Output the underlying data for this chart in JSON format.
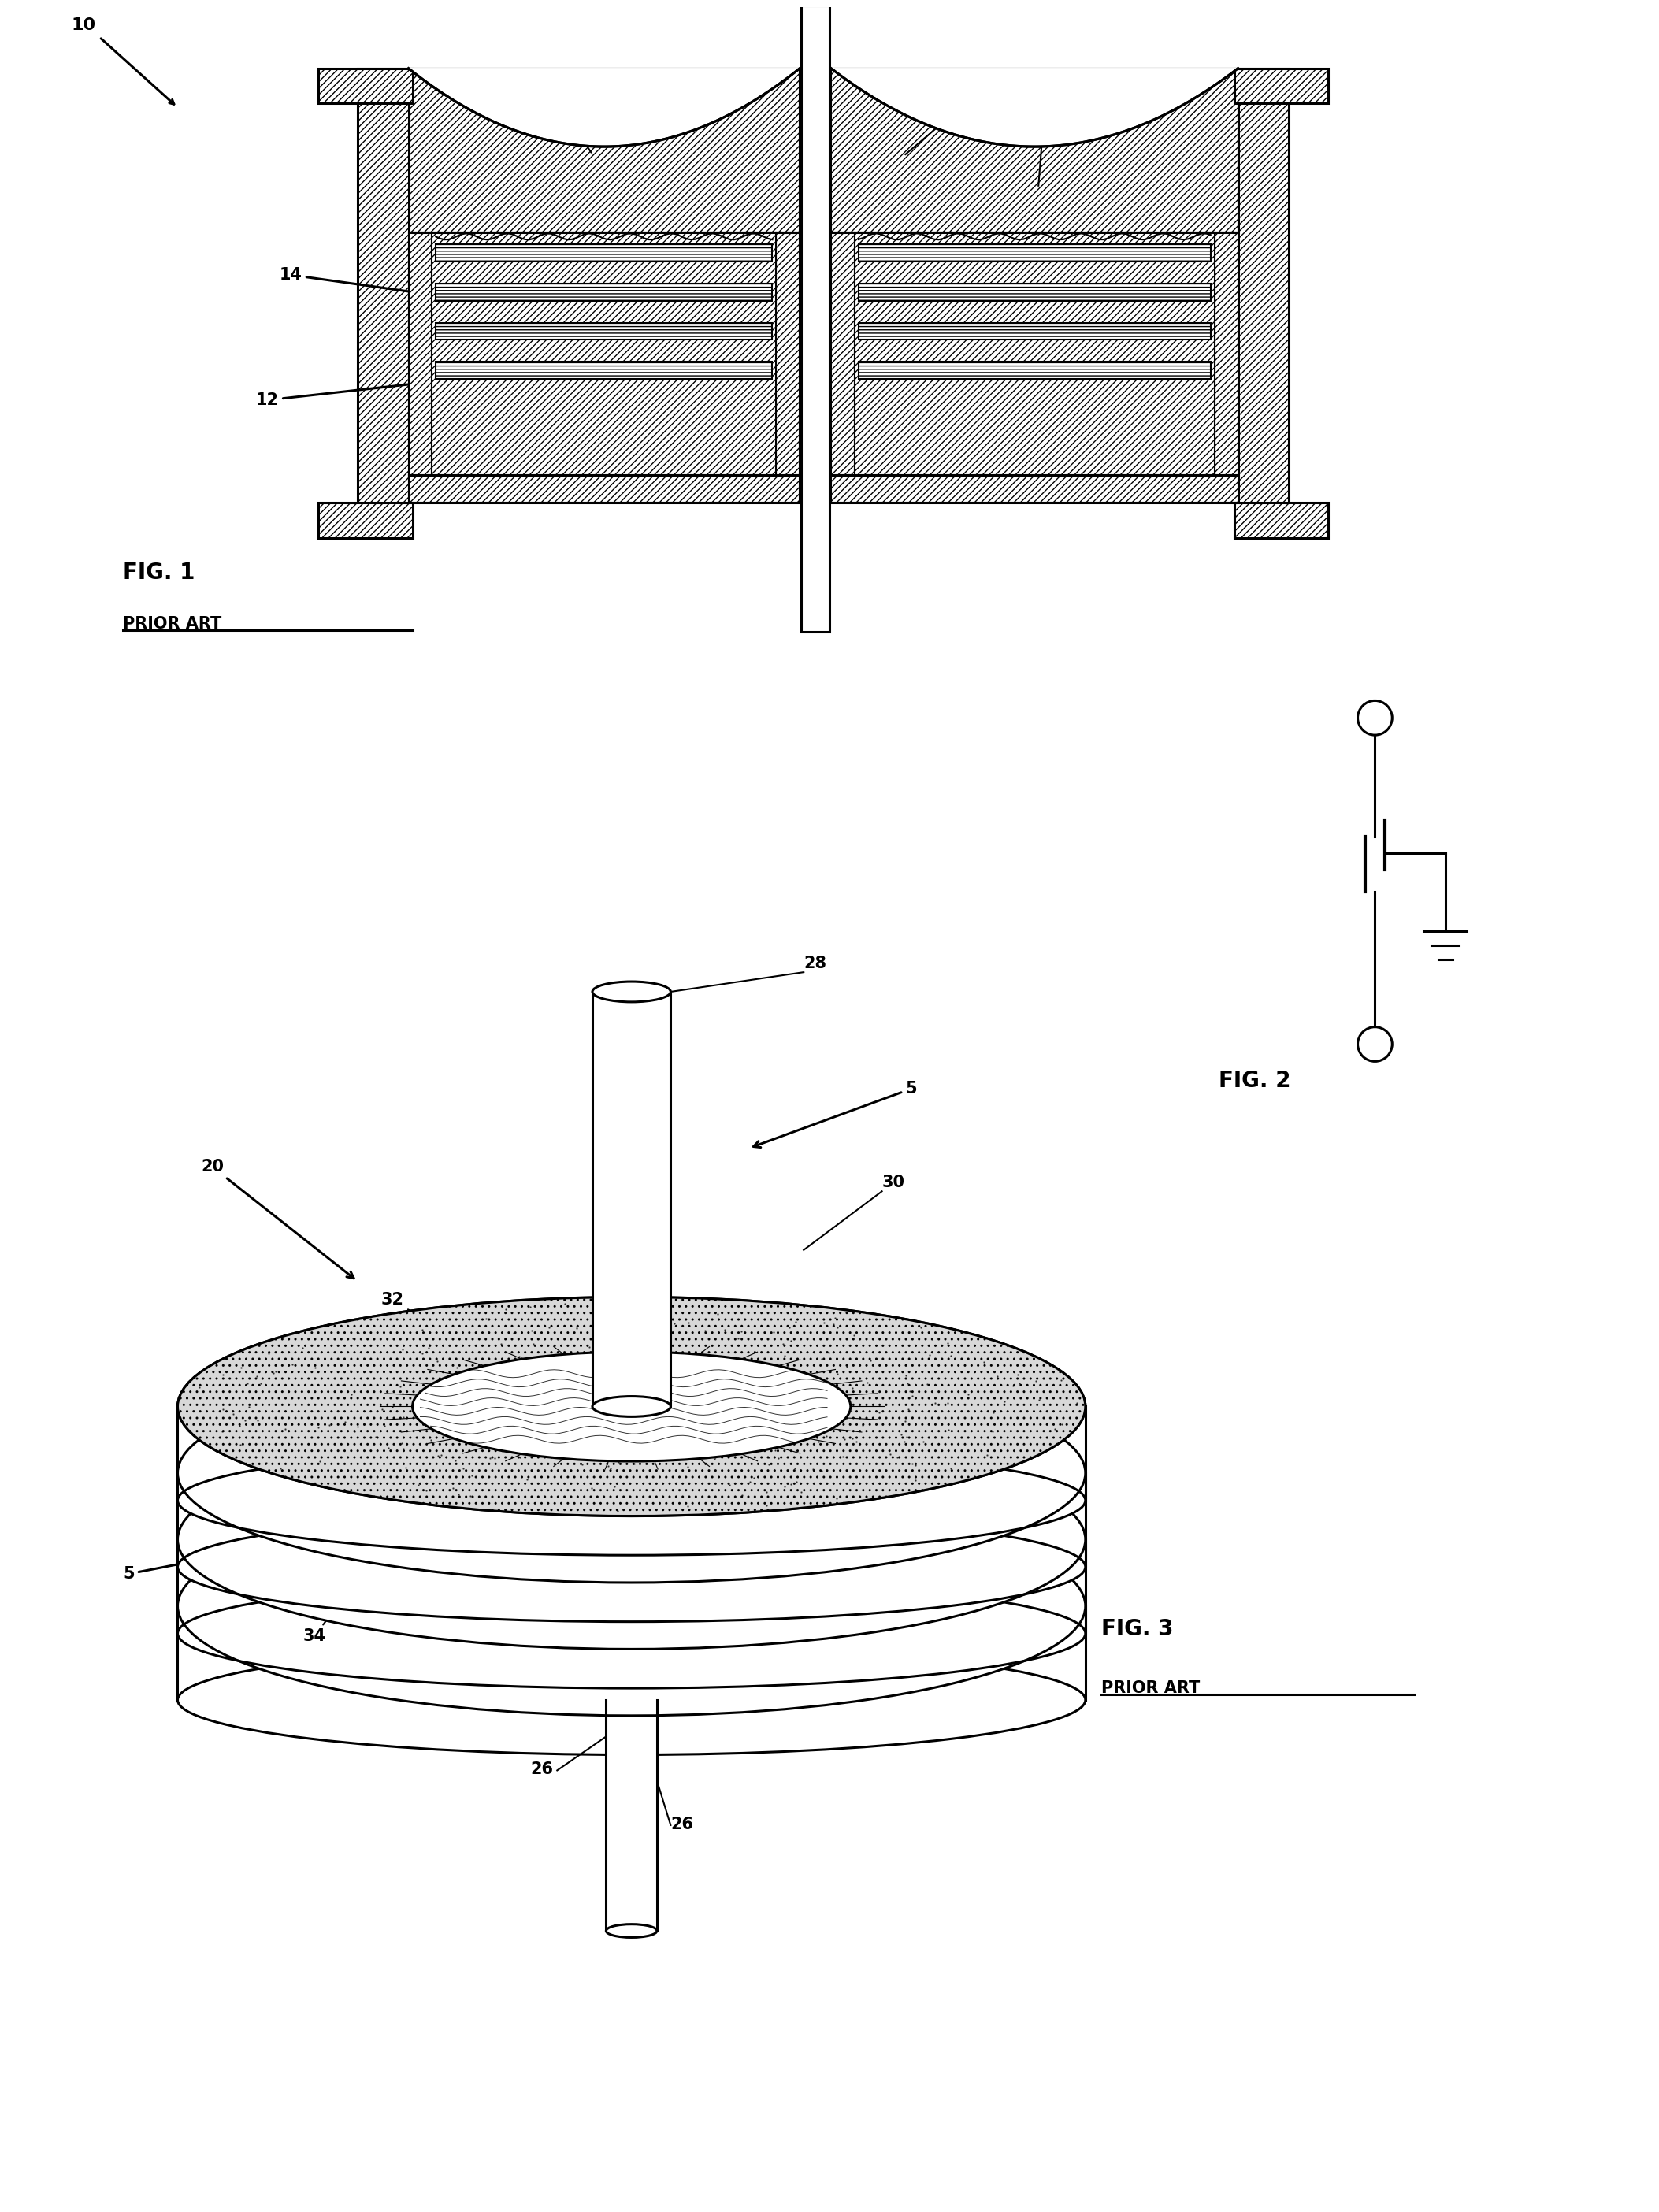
{
  "fig1_label": "FIG. 1",
  "fig1_sublabel": "PRIOR ART",
  "fig2_label": "FIG. 2",
  "fig3_label": "FIG. 3",
  "fig3_sublabel": "PRIOR ART",
  "bg_color": "#ffffff",
  "line_color": "#000000"
}
